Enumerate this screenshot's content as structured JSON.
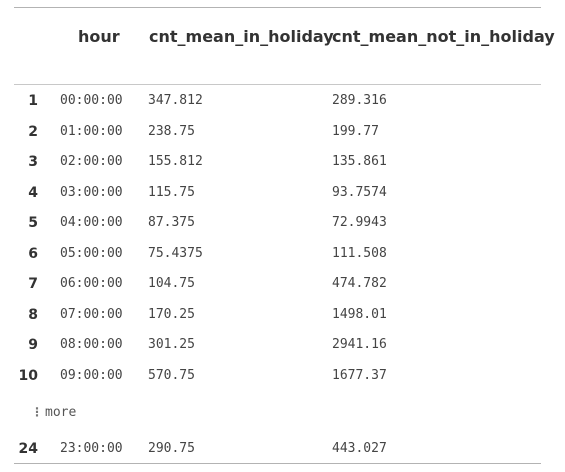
{
  "table": {
    "columns": {
      "hour": "hour",
      "holiday": "cnt_mean_in_holiday",
      "not_holiday": "cnt_mean_not_in_holiday"
    },
    "rows": [
      {
        "idx": "1",
        "hour": "00:00:00",
        "holiday": "347.812",
        "not_holiday": "289.316"
      },
      {
        "idx": "2",
        "hour": "01:00:00",
        "holiday": "238.75",
        "not_holiday": "199.77"
      },
      {
        "idx": "3",
        "hour": "02:00:00",
        "holiday": "155.812",
        "not_holiday": "135.861"
      },
      {
        "idx": "4",
        "hour": "03:00:00",
        "holiday": "115.75",
        "not_holiday": "93.7574"
      },
      {
        "idx": "5",
        "hour": "04:00:00",
        "holiday": "87.375",
        "not_holiday": "72.9943"
      },
      {
        "idx": "6",
        "hour": "05:00:00",
        "holiday": "75.4375",
        "not_holiday": "111.508"
      },
      {
        "idx": "7",
        "hour": "06:00:00",
        "holiday": "104.75",
        "not_holiday": "474.782"
      },
      {
        "idx": "8",
        "hour": "07:00:00",
        "holiday": "170.25",
        "not_holiday": "1498.01"
      },
      {
        "idx": "9",
        "hour": "08:00:00",
        "holiday": "301.25",
        "not_holiday": "2941.16"
      },
      {
        "idx": "10",
        "hour": "09:00:00",
        "holiday": "570.75",
        "not_holiday": "1677.37"
      }
    ],
    "more_label": "more",
    "last_row": {
      "idx": "24",
      "hour": "23:00:00",
      "holiday": "290.75",
      "not_holiday": "443.027"
    }
  }
}
